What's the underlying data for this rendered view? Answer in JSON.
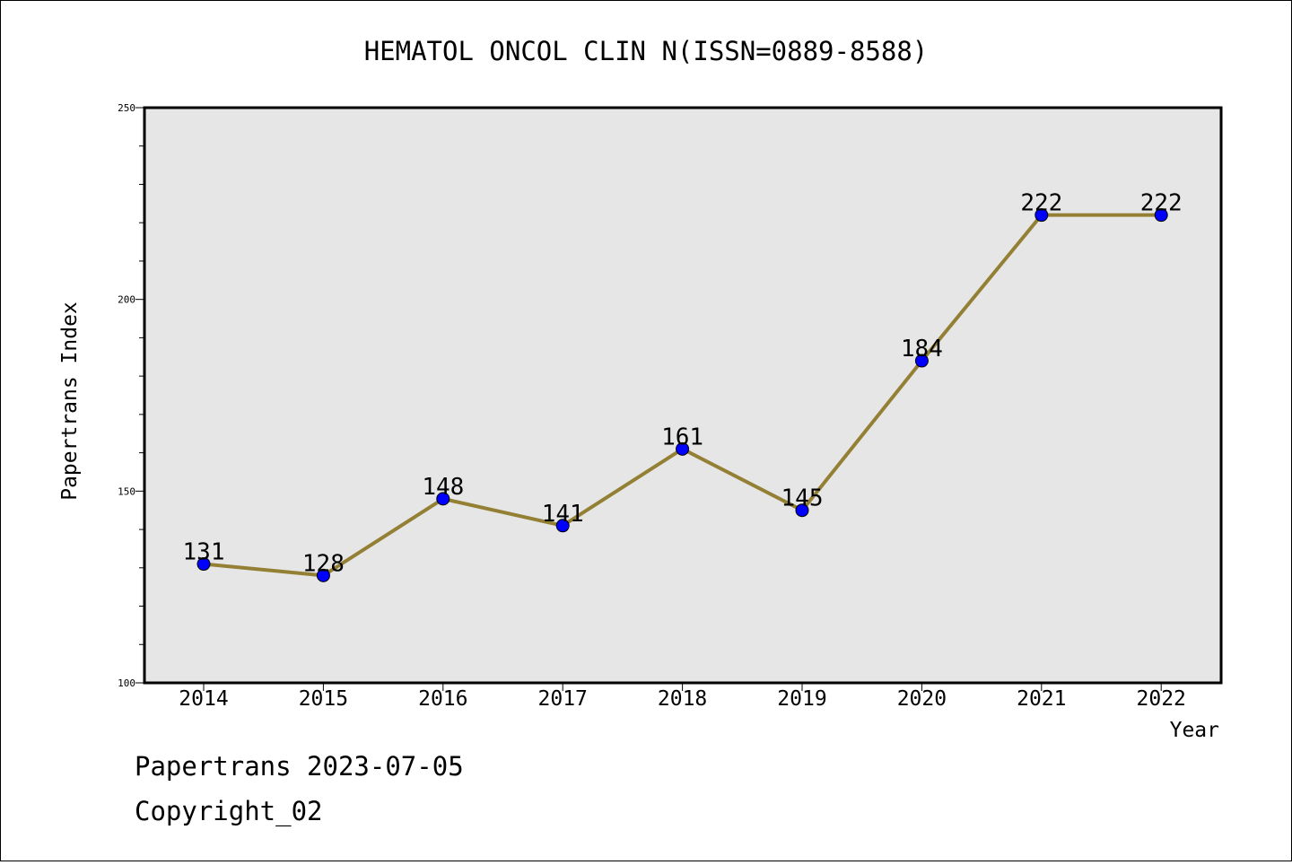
{
  "chart_data": {
    "type": "line",
    "title": "HEMATOL ONCOL CLIN N(ISSN=0889-8588)",
    "xlabel": "Year",
    "ylabel": "Papertrans Index",
    "x": [
      "2014",
      "2015",
      "2016",
      "2017",
      "2018",
      "2019",
      "2020",
      "2021",
      "2022"
    ],
    "series": [
      {
        "values": [
          131,
          128,
          148,
          141,
          161,
          145,
          184,
          222,
          222
        ]
      }
    ],
    "data_labels": [
      "131",
      "128",
      "148",
      "141",
      "161",
      "145",
      "184",
      "222",
      "222"
    ],
    "ylim": [
      100,
      250
    ],
    "y_ticks": [
      "100",
      "150",
      "200",
      "250"
    ],
    "grid": false,
    "colors": {
      "line": "#948035",
      "marker": "#0000ff",
      "plot_background": "#e6e6e6"
    }
  },
  "footer": {
    "line1": "Papertrans 2023-07-05",
    "line2": "Copyright_02"
  }
}
